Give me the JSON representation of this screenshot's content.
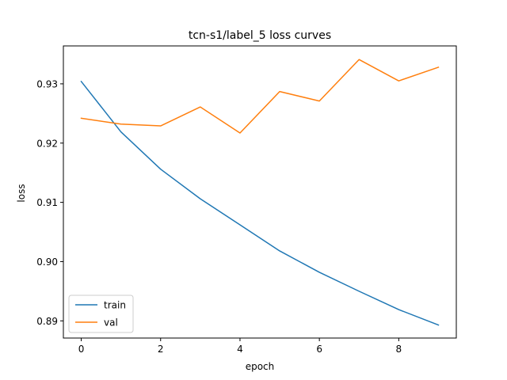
{
  "chart_data": {
    "type": "line",
    "title": "tcn-s1/label_5 loss curves",
    "xlabel": "epoch",
    "ylabel": "loss",
    "x": [
      0,
      1,
      2,
      3,
      4,
      5,
      6,
      7,
      8,
      9
    ],
    "xlim": [
      -0.45,
      9.45
    ],
    "ylim": [
      0.8871,
      0.9364
    ],
    "xticks": [
      0,
      2,
      4,
      6,
      8
    ],
    "yticks": [
      0.89,
      0.9,
      0.91,
      0.92,
      0.93
    ],
    "ytick_labels": [
      "0.89",
      "0.90",
      "0.91",
      "0.92",
      "0.93"
    ],
    "grid": false,
    "legend": {
      "placement": "lower-left"
    },
    "series": [
      {
        "name": "train",
        "color": "#1f77b4",
        "values": [
          0.9304,
          0.9219,
          0.9156,
          0.9106,
          0.9062,
          0.9018,
          0.8982,
          0.895,
          0.8919,
          0.8893
        ]
      },
      {
        "name": "val",
        "color": "#ff7f0e",
        "values": [
          0.9242,
          0.9232,
          0.9229,
          0.9261,
          0.9217,
          0.9287,
          0.9271,
          0.9341,
          0.9305,
          0.9328
        ]
      }
    ]
  }
}
